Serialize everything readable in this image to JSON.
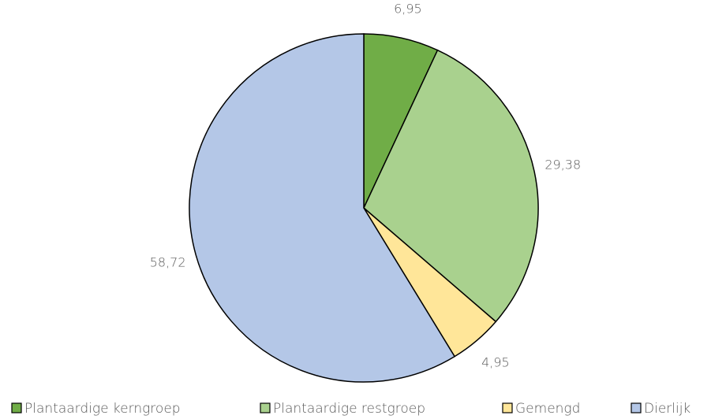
{
  "chart_data": {
    "type": "pie",
    "categories": [
      "Plantaardige kerngroep",
      "Plantaardige restgroep",
      "Gemengd",
      "Dierlijk"
    ],
    "values": [
      6.95,
      29.38,
      4.95,
      58.72
    ],
    "value_labels": [
      "6,95",
      "29,38",
      "4,95",
      "58,72"
    ],
    "colors": [
      "#70ad47",
      "#a9d18e",
      "#ffe699",
      "#b4c7e7"
    ],
    "legend": "bottom"
  }
}
